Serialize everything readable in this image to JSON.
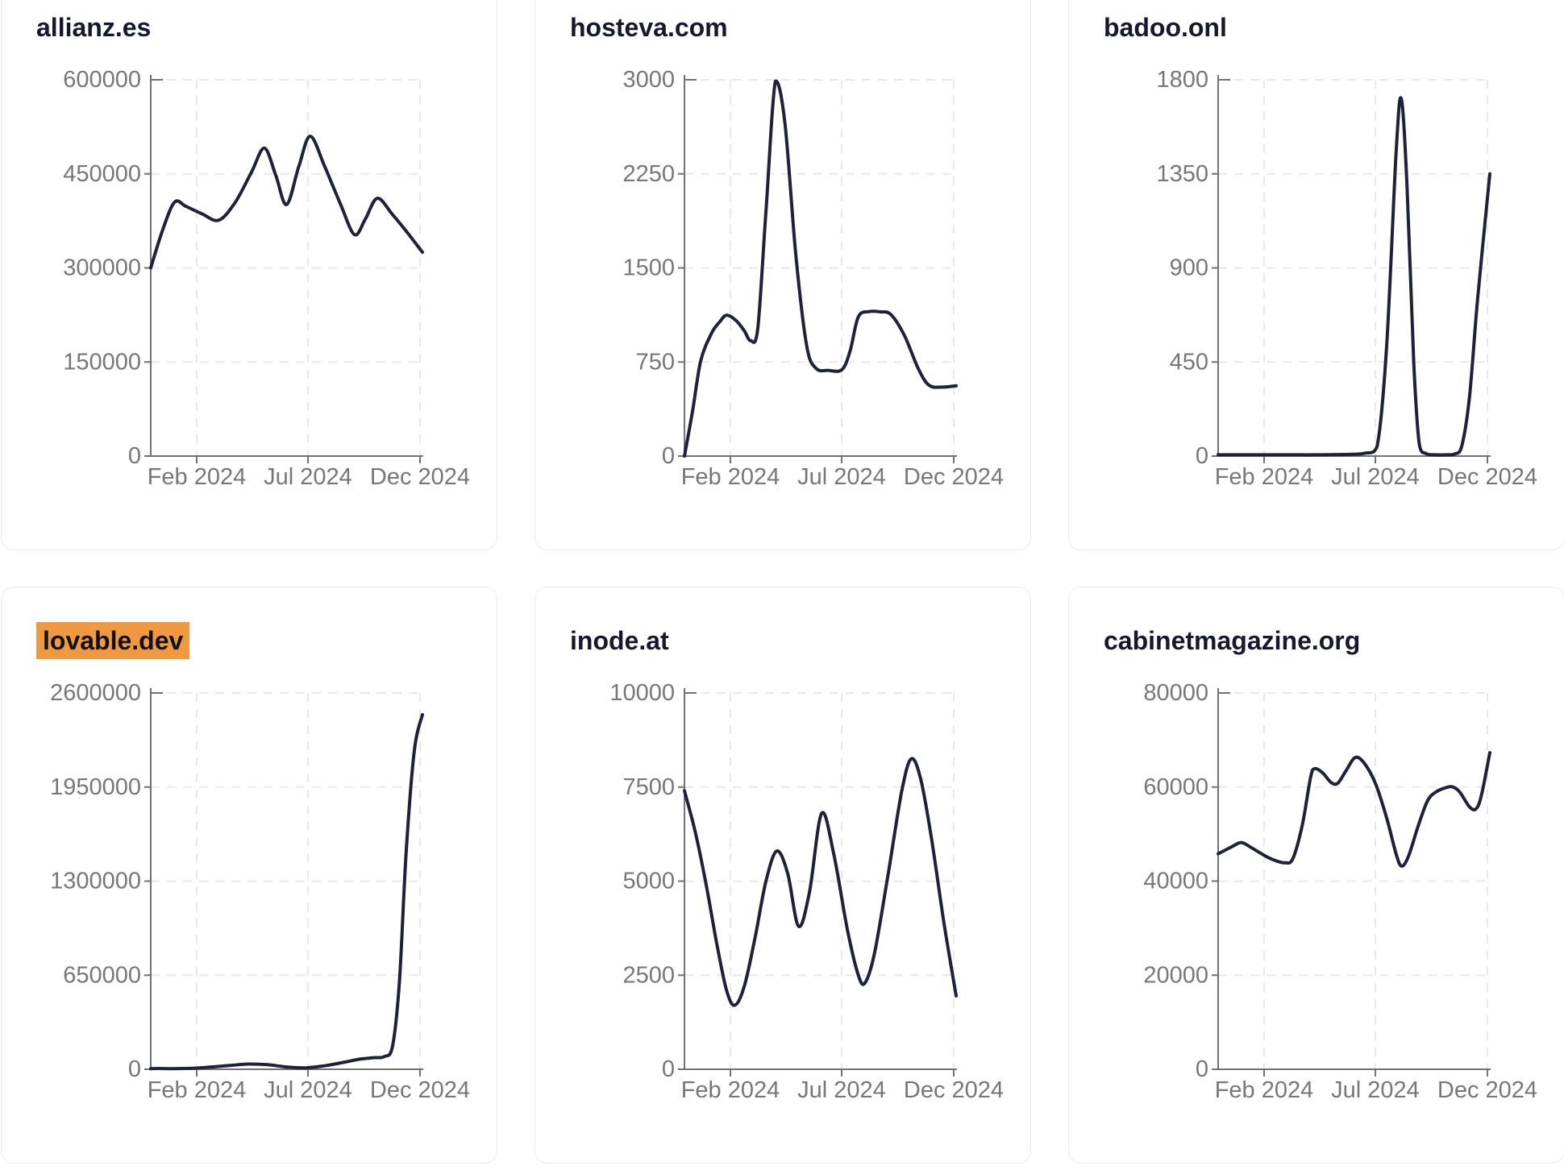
{
  "page": {
    "background": "#ffffff"
  },
  "palette": {
    "line": "#1c2238",
    "title_text": "#14192d",
    "tick_label": "#76767c",
    "axis": "#717175",
    "gridline": "#e8e8ec",
    "card_border": "#e9eaf3",
    "card_background": "#ffffff",
    "highlight_background": "#ef9a43",
    "highlight_text": "#111111"
  },
  "chart_data": [
    {
      "type": "line",
      "title": "allianz.es",
      "highlighted": false,
      "x_tick_labels": [
        "Feb 2024",
        "Jul 2024",
        "Dec 2024"
      ],
      "y_ticks": [
        0,
        150000,
        300000,
        450000,
        600000
      ],
      "y_max": 600000,
      "x_range": [
        "Jan 2024",
        "Dec 2024"
      ],
      "grid": true,
      "series": [
        [
          0,
          300000
        ],
        [
          0.045,
          362000
        ],
        [
          0.088,
          405000
        ],
        [
          0.13,
          398000
        ],
        [
          0.19,
          386000
        ],
        [
          0.25,
          376000
        ],
        [
          0.31,
          404000
        ],
        [
          0.37,
          452000
        ],
        [
          0.418,
          491000
        ],
        [
          0.46,
          448000
        ],
        [
          0.5,
          401000
        ],
        [
          0.545,
          462000
        ],
        [
          0.587,
          510000
        ],
        [
          0.64,
          462000
        ],
        [
          0.7,
          400000
        ],
        [
          0.75,
          353000
        ],
        [
          0.79,
          378000
        ],
        [
          0.834,
          411000
        ],
        [
          0.89,
          385000
        ],
        [
          0.945,
          356000
        ],
        [
          1,
          325000
        ]
      ]
    },
    {
      "type": "line",
      "title": "hosteva.com",
      "highlighted": false,
      "x_tick_labels": [
        "Feb 2024",
        "Jul 2024",
        "Dec 2024"
      ],
      "y_ticks": [
        0,
        750,
        1500,
        2250,
        3000
      ],
      "y_max": 3000,
      "x_range": [
        "Jan 2024",
        "Dec 2024"
      ],
      "grid": true,
      "series": [
        [
          0,
          0
        ],
        [
          0.03,
          360
        ],
        [
          0.06,
          760
        ],
        [
          0.1,
          980
        ],
        [
          0.13,
          1070
        ],
        [
          0.155,
          1123
        ],
        [
          0.19,
          1080
        ],
        [
          0.22,
          1000
        ],
        [
          0.244,
          920
        ],
        [
          0.27,
          1020
        ],
        [
          0.3,
          1950
        ],
        [
          0.335,
          2990
        ],
        [
          0.37,
          2650
        ],
        [
          0.41,
          1600
        ],
        [
          0.45,
          880
        ],
        [
          0.484,
          700
        ],
        [
          0.53,
          683
        ],
        [
          0.58,
          690
        ],
        [
          0.61,
          840
        ],
        [
          0.64,
          1110
        ],
        [
          0.68,
          1152
        ],
        [
          0.72,
          1150
        ],
        [
          0.76,
          1128
        ],
        [
          0.81,
          960
        ],
        [
          0.86,
          700
        ],
        [
          0.9,
          565
        ],
        [
          0.95,
          550
        ],
        [
          1,
          560
        ]
      ]
    },
    {
      "type": "line",
      "title": "badoo.onl",
      "highlighted": false,
      "x_tick_labels": [
        "Feb 2024",
        "Jul 2024",
        "Dec 2024"
      ],
      "y_ticks": [
        0,
        450,
        900,
        1350,
        1800
      ],
      "y_max": 1800,
      "x_range": [
        "Jan 2024",
        "Dec 2024"
      ],
      "grid": true,
      "series": [
        [
          0,
          6
        ],
        [
          0.07,
          6
        ],
        [
          0.14,
          6
        ],
        [
          0.21,
          6
        ],
        [
          0.28,
          6
        ],
        [
          0.35,
          6
        ],
        [
          0.42,
          7
        ],
        [
          0.48,
          8
        ],
        [
          0.54,
          14
        ],
        [
          0.585,
          45
        ],
        [
          0.62,
          520
        ],
        [
          0.655,
          1450
        ],
        [
          0.674,
          1710
        ],
        [
          0.695,
          1300
        ],
        [
          0.72,
          450
        ],
        [
          0.74,
          60
        ],
        [
          0.765,
          12
        ],
        [
          0.8,
          6
        ],
        [
          0.84,
          6
        ],
        [
          0.87,
          10
        ],
        [
          0.896,
          45
        ],
        [
          0.925,
          280
        ],
        [
          0.955,
          750
        ],
        [
          1,
          1350
        ]
      ]
    },
    {
      "type": "line",
      "title": "lovable.dev",
      "highlighted": true,
      "x_tick_labels": [
        "Feb 2024",
        "Jul 2024",
        "Dec 2024"
      ],
      "y_ticks": [
        0,
        650000,
        1300000,
        1950000,
        2600000
      ],
      "y_max": 2600000,
      "x_range": [
        "Jan 2024",
        "Dec 2024"
      ],
      "grid": true,
      "series": [
        [
          0,
          4000
        ],
        [
          0.07,
          4000
        ],
        [
          0.14,
          6000
        ],
        [
          0.22,
          15000
        ],
        [
          0.3,
          28000
        ],
        [
          0.36,
          36000
        ],
        [
          0.43,
          32000
        ],
        [
          0.5,
          16000
        ],
        [
          0.57,
          10000
        ],
        [
          0.64,
          24000
        ],
        [
          0.71,
          48000
        ],
        [
          0.77,
          70000
        ],
        [
          0.82,
          80000
        ],
        [
          0.86,
          88000
        ],
        [
          0.89,
          160000
        ],
        [
          0.915,
          600000
        ],
        [
          0.94,
          1500000
        ],
        [
          0.97,
          2200000
        ],
        [
          1,
          2450000
        ]
      ]
    },
    {
      "type": "line",
      "title": "inode.at",
      "highlighted": false,
      "x_tick_labels": [
        "Feb 2024",
        "Jul 2024",
        "Dec 2024"
      ],
      "y_ticks": [
        0,
        2500,
        5000,
        7500,
        10000
      ],
      "y_max": 10000,
      "x_range": [
        "Jan 2024",
        "Dec 2024"
      ],
      "grid": true,
      "series": [
        [
          0,
          7400
        ],
        [
          0.04,
          6300
        ],
        [
          0.08,
          4900
        ],
        [
          0.12,
          3300
        ],
        [
          0.155,
          2100
        ],
        [
          0.185,
          1700
        ],
        [
          0.22,
          2200
        ],
        [
          0.26,
          3500
        ],
        [
          0.3,
          5000
        ],
        [
          0.34,
          5800
        ],
        [
          0.38,
          5200
        ],
        [
          0.42,
          3800
        ],
        [
          0.46,
          4700
        ],
        [
          0.505,
          6800
        ],
        [
          0.55,
          5700
        ],
        [
          0.6,
          3700
        ],
        [
          0.64,
          2500
        ],
        [
          0.665,
          2300
        ],
        [
          0.7,
          3100
        ],
        [
          0.75,
          5200
        ],
        [
          0.8,
          7400
        ],
        [
          0.835,
          8250
        ],
        [
          0.87,
          7700
        ],
        [
          0.91,
          6100
        ],
        [
          0.955,
          3900
        ],
        [
          1,
          1950
        ]
      ]
    },
    {
      "type": "line",
      "title": "cabinetmagazine.org",
      "highlighted": false,
      "x_tick_labels": [
        "Feb 2024",
        "Jul 2024",
        "Dec 2024"
      ],
      "y_ticks": [
        0,
        20000,
        40000,
        60000,
        80000
      ],
      "y_max": 80000,
      "x_range": [
        "Jan 2024",
        "Dec 2024"
      ],
      "grid": true,
      "series": [
        [
          0,
          45800
        ],
        [
          0.05,
          47300
        ],
        [
          0.085,
          48200
        ],
        [
          0.12,
          47200
        ],
        [
          0.16,
          45800
        ],
        [
          0.2,
          44600
        ],
        [
          0.245,
          43900
        ],
        [
          0.275,
          44800
        ],
        [
          0.31,
          52000
        ],
        [
          0.34,
          62000
        ],
        [
          0.355,
          63900
        ],
        [
          0.385,
          63000
        ],
        [
          0.415,
          61000
        ],
        [
          0.44,
          60800
        ],
        [
          0.47,
          63400
        ],
        [
          0.505,
          66300
        ],
        [
          0.54,
          64900
        ],
        [
          0.58,
          60600
        ],
        [
          0.62,
          53500
        ],
        [
          0.655,
          45800
        ],
        [
          0.675,
          43200
        ],
        [
          0.7,
          45200
        ],
        [
          0.735,
          51500
        ],
        [
          0.77,
          57000
        ],
        [
          0.8,
          58900
        ],
        [
          0.84,
          59900
        ],
        [
          0.865,
          60000
        ],
        [
          0.89,
          58900
        ],
        [
          0.925,
          55800
        ],
        [
          0.95,
          55400
        ],
        [
          0.97,
          58500
        ],
        [
          1,
          67300
        ]
      ]
    }
  ]
}
